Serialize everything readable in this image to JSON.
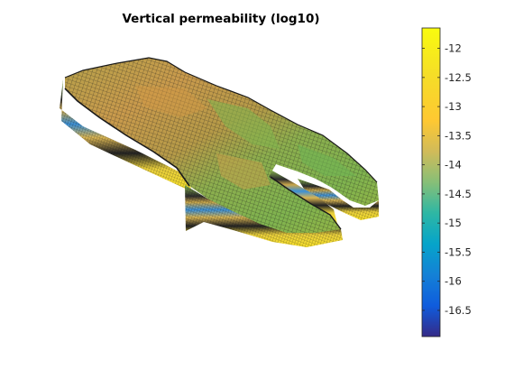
{
  "chart_data": {
    "type": "heatmap",
    "subtype": "3d-reservoir-grid",
    "title": "Vertical permeability (log10)",
    "colormap": "parula",
    "colorbar": {
      "orientation": "vertical",
      "placement": "right",
      "range": [
        -16.95,
        -11.65
      ],
      "ticks": [
        -12,
        -12.5,
        -13,
        -13.5,
        -14,
        -14.5,
        -15,
        -15.5,
        -16,
        -16.5
      ],
      "tick_labels": [
        "-12",
        "-12.5",
        "-13",
        "-13.5",
        "-14",
        "-14.5",
        "-15",
        "-15.5",
        "-16",
        "-16.5"
      ]
    },
    "grid": false,
    "axes_visible": false
  }
}
